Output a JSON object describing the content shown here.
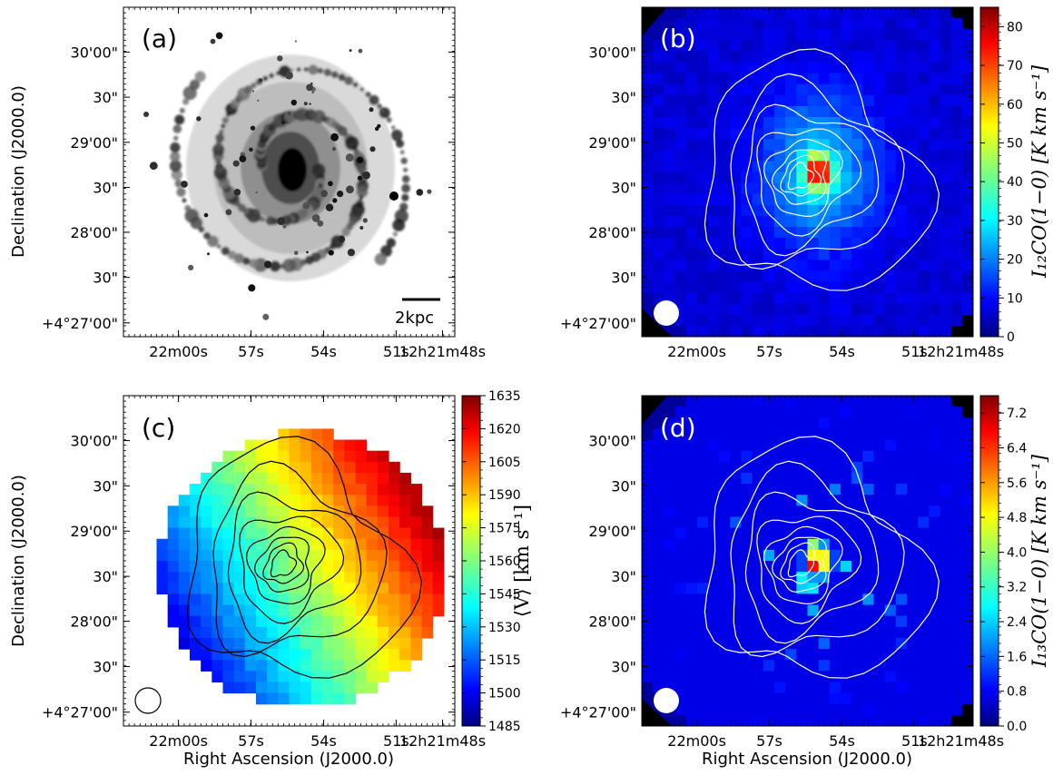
{
  "figure": {
    "panels": [
      {
        "id": "a",
        "label": "(a)",
        "ylabel": "Declination (J2000.0)",
        "xlabel": "",
        "y_ticks": [
          "30'00\"",
          "30\"",
          "29'00\"",
          "30\"",
          "28'00\"",
          "30\"",
          "+4°27'00\""
        ],
        "x_ticks": [
          "22m00s",
          "57s",
          "54s",
          "51s",
          "12h21m48s"
        ],
        "scalebar_label": "2kpc",
        "colormap": "gray_r"
      },
      {
        "id": "b",
        "label": "(b)",
        "ylabel": "",
        "xlabel": "",
        "y_ticks": [
          "30'00\"",
          "30\"",
          "29'00\"",
          "30\"",
          "28'00\"",
          "30\"",
          "+4°27'00\""
        ],
        "x_ticks": [
          "22m00s",
          "57s",
          "54s",
          "51s",
          "12h21m48s"
        ],
        "colorbar": {
          "label": "I₁₂CO(1−0) [K km s⁻¹]",
          "ticks": [
            "0",
            "10",
            "20",
            "30",
            "40",
            "50",
            "60",
            "70",
            "80"
          ],
          "range": [
            0,
            85
          ]
        },
        "colormap": "jet",
        "beam": "filled-white"
      },
      {
        "id": "c",
        "label": "(c)",
        "ylabel": "Declination (J2000.0)",
        "xlabel": "Right Ascension (J2000.0)",
        "y_ticks": [
          "30'00\"",
          "30\"",
          "29'00\"",
          "30\"",
          "28'00\"",
          "30\"",
          "+4°27'00\""
        ],
        "x_ticks": [
          "22m00s",
          "57s",
          "54s",
          "51s",
          "12h21m48s"
        ],
        "colorbar": {
          "label": "⟨V⟩ [km s⁻¹]",
          "ticks": [
            "1485",
            "1500",
            "1515",
            "1530",
            "1545",
            "1560",
            "1575",
            "1590",
            "1605",
            "1620",
            "1635"
          ],
          "range": [
            1485,
            1635
          ]
        },
        "colormap": "jet",
        "beam": "open-black"
      },
      {
        "id": "d",
        "label": "(d)",
        "ylabel": "",
        "xlabel": "Right Ascension (J2000.0)",
        "y_ticks": [
          "30'00\"",
          "30\"",
          "29'00\"",
          "30\"",
          "28'00\"",
          "30\"",
          "+4°27'00\""
        ],
        "x_ticks": [
          "22m00s",
          "57s",
          "54s",
          "51s",
          "12h21m48s"
        ],
        "colorbar": {
          "label": "I₁₃CO(1−0) [K km s⁻¹]",
          "ticks": [
            "0.0",
            "0.8",
            "1.6",
            "2.4",
            "3.2",
            "4.0",
            "4.8",
            "5.6",
            "6.4",
            "7.2"
          ],
          "range": [
            0,
            7.6
          ]
        },
        "colormap": "jet",
        "beam": "filled-white"
      }
    ]
  },
  "chart_data": {
    "type": "heatmap",
    "panels": [
      "(a)",
      "(b)",
      "(c)",
      "(d)"
    ],
    "x_axis": {
      "label": "Right Ascension (J2000.0)",
      "ticks": [
        "22m00s",
        "57s",
        "54s",
        "51s",
        "12h21m48s"
      ]
    },
    "y_axis": {
      "label": "Declination (J2000.0)",
      "ticks": [
        "+4°27'00\"",
        "30\"",
        "28'00\"",
        "30\"",
        "29'00\"",
        "30\"",
        "30'00\""
      ]
    },
    "colorbars": [
      {
        "panel": "(b)",
        "label": "I12CO(1−0) [K km s−1]",
        "min": 0,
        "max": 85,
        "peak_approx": 85
      },
      {
        "panel": "(c)",
        "label": "⟨V⟩ [km s−1]",
        "min": 1485,
        "max": 1635
      },
      {
        "panel": "(d)",
        "label": "I13CO(1−0) [K km s−1]",
        "min": 0,
        "max": 7.6,
        "peak_approx": 7.5
      }
    ],
    "scalebar": {
      "panel": "(a)",
      "text": "2kpc"
    },
    "colors": {
      "jet_low": "#00007f",
      "jet_high": "#7f0000",
      "contour_white": "#ffffff",
      "contour_black": "#000000"
    }
  }
}
